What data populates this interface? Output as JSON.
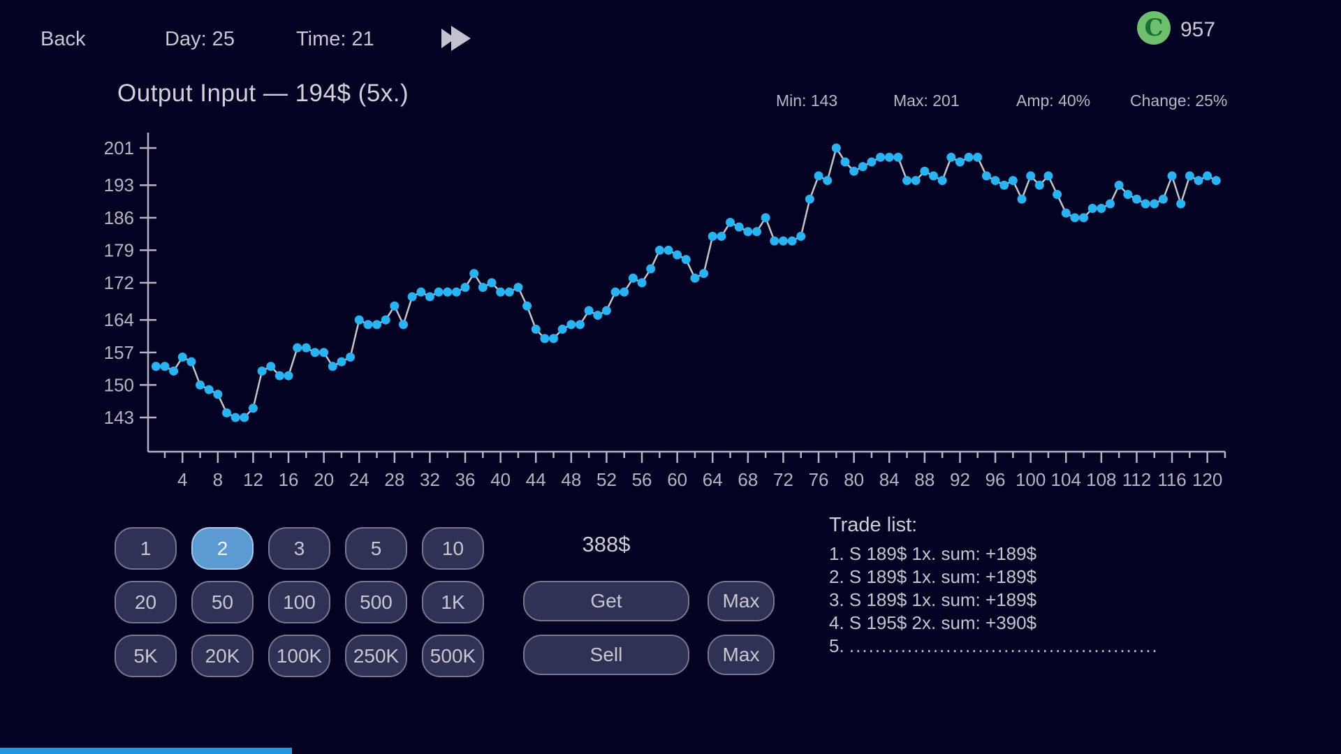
{
  "top_bar": {
    "back_label": "Back",
    "day_label": "Day: 25",
    "time_label": "Time: 21",
    "coin_balance": "957",
    "coin_letter": "C"
  },
  "stock": {
    "title": "Output Input — 194$ (5x.)",
    "stats": {
      "min": "Min: 143",
      "max": "Max: 201",
      "amp": "Amp: 40%",
      "change": "Change: 25%"
    }
  },
  "chart_data": {
    "type": "line",
    "title": "Output Input — 194$ (5x.)",
    "current_price": 194,
    "multiplier": "5x.",
    "x_start": 1,
    "x_step": 1,
    "values": [
      154,
      154,
      153,
      156,
      155,
      150,
      149,
      148,
      144,
      143,
      143,
      145,
      153,
      154,
      152,
      152,
      158,
      158,
      157,
      157,
      154,
      155,
      156,
      164,
      163,
      163,
      164,
      167,
      163,
      169,
      170,
      169,
      170,
      170,
      170,
      171,
      174,
      171,
      172,
      170,
      170,
      171,
      167,
      162,
      160,
      160,
      162,
      163,
      163,
      166,
      165,
      166,
      170,
      170,
      173,
      172,
      175,
      179,
      179,
      178,
      177,
      173,
      174,
      182,
      182,
      185,
      184,
      183,
      183,
      186,
      181,
      181,
      181,
      182,
      190,
      195,
      194,
      201,
      198,
      196,
      197,
      198,
      199,
      199,
      199,
      194,
      194,
      196,
      195,
      194,
      199,
      198,
      199,
      199,
      195,
      194,
      193,
      194,
      190,
      195,
      193,
      195,
      191,
      187,
      186,
      186,
      188,
      188,
      189,
      193,
      191,
      190,
      189,
      189,
      190,
      195,
      189,
      195,
      194,
      195,
      194
    ],
    "y_ticks": [
      201,
      193,
      186,
      179,
      172,
      164,
      157,
      150,
      143
    ],
    "x_tick_label_step": 4,
    "x_tick_minor_step": 2,
    "xlim": [
      1,
      121
    ],
    "ylim": [
      143,
      201
    ],
    "stats": {
      "min": 143,
      "max": 201,
      "amplitude_pct": 40,
      "change_pct": 25
    },
    "grid": false,
    "legend": "none",
    "point_color": "#29b3f2",
    "line_color": "#c6c6c6",
    "axis_color": "#b4b5c0",
    "label_color": "#b4b5c0"
  },
  "controls": {
    "amount_display": "388$",
    "selected_qty": "2",
    "qty_buttons": [
      "1",
      "2",
      "3",
      "5",
      "10",
      "20",
      "50",
      "100",
      "500",
      "1K",
      "5K",
      "20K",
      "100K",
      "250K",
      "500K"
    ],
    "get_label": "Get",
    "sell_label": "Sell",
    "max_label": "Max"
  },
  "trade_list": {
    "title": "Trade list:",
    "items": [
      "1. S 189$ 1x. sum: +189$",
      "2. S 189$ 1x. sum: +189$",
      "3. S 189$ 1x. sum: +189$",
      "4. S 195$ 2x. sum: +390$"
    ],
    "placeholder_row": {
      "num": "5.",
      "dots": "................................................"
    }
  },
  "progress_bar": {
    "color": "#2196e3"
  }
}
